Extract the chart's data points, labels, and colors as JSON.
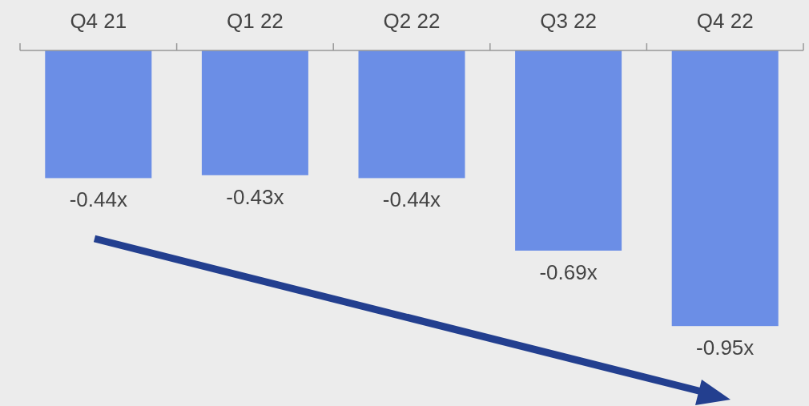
{
  "chart_data": {
    "type": "bar",
    "categories": [
      "Q4 21",
      "Q1 22",
      "Q2 22",
      "Q3 22",
      "Q4 22"
    ],
    "values": [
      -0.44,
      -0.43,
      -0.44,
      -0.69,
      -0.95
    ],
    "value_labels": [
      "-0.44x",
      "-0.43x",
      "-0.44x",
      "-0.69x",
      "-0.95x"
    ],
    "color": "#6b8ee6"
  }
}
